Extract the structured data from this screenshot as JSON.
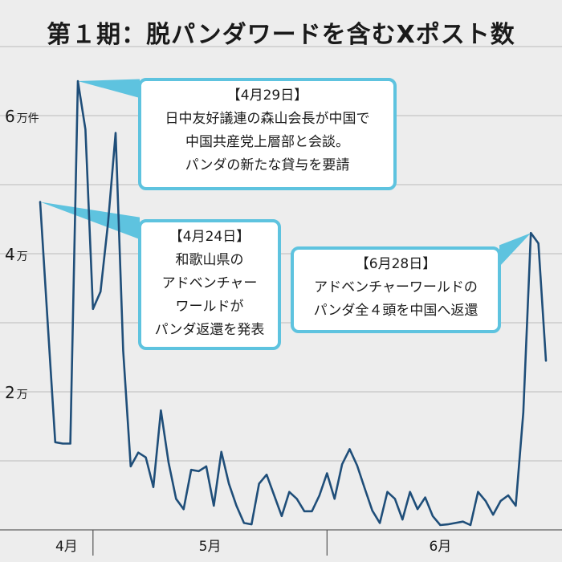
{
  "title": "第１期：脱パンダワードを含むXポスト数",
  "chart_data": {
    "type": "line",
    "title": "第１期：脱パンダワードを含むXポスト数",
    "unit": "万件",
    "y_ticks": [
      {
        "value": 6,
        "label": "6",
        "unit": "万件"
      },
      {
        "value": 4,
        "label": "4",
        "unit": "万"
      },
      {
        "value": 2,
        "label": "2",
        "unit": "万"
      }
    ],
    "ylim": [
      0,
      7
    ],
    "grid": true,
    "x_months": [
      {
        "label": "4月",
        "start_day": 0,
        "end_day": 7
      },
      {
        "label": "5月",
        "start_day": 7,
        "end_day": 38
      },
      {
        "label": "6月",
        "start_day": 38,
        "end_day": 68
      }
    ],
    "series": [
      {
        "color": "#1f4e79",
        "points": [
          {
            "x": "2024-04-24",
            "y": 4.75
          },
          {
            "x": "2024-04-25",
            "y": 3.0
          },
          {
            "x": "2024-04-26",
            "y": 1.27
          },
          {
            "x": "2024-04-27",
            "y": 1.25
          },
          {
            "x": "2024-04-28",
            "y": 1.25
          },
          {
            "x": "2024-04-29",
            "y": 6.5
          },
          {
            "x": "2024-04-30",
            "y": 5.8
          },
          {
            "x": "2024-05-01",
            "y": 3.2
          },
          {
            "x": "2024-05-02",
            "y": 3.45
          },
          {
            "x": "2024-05-03",
            "y": 4.45
          },
          {
            "x": "2024-05-04",
            "y": 5.75
          },
          {
            "x": "2024-05-05",
            "y": 2.6
          },
          {
            "x": "2024-05-06",
            "y": 0.92
          },
          {
            "x": "2024-05-07",
            "y": 1.12
          },
          {
            "x": "2024-05-08",
            "y": 1.05
          },
          {
            "x": "2024-05-09",
            "y": 0.62
          },
          {
            "x": "2024-05-10",
            "y": 1.73
          },
          {
            "x": "2024-05-11",
            "y": 0.98
          },
          {
            "x": "2024-05-12",
            "y": 0.45
          },
          {
            "x": "2024-05-13",
            "y": 0.3
          },
          {
            "x": "2024-05-14",
            "y": 0.87
          },
          {
            "x": "2024-05-15",
            "y": 0.85
          },
          {
            "x": "2024-05-16",
            "y": 0.92
          },
          {
            "x": "2024-05-17",
            "y": 0.35
          },
          {
            "x": "2024-05-18",
            "y": 1.13
          },
          {
            "x": "2024-05-19",
            "y": 0.67
          },
          {
            "x": "2024-05-20",
            "y": 0.35
          },
          {
            "x": "2024-05-21",
            "y": 0.1
          },
          {
            "x": "2024-05-22",
            "y": 0.08
          },
          {
            "x": "2024-05-23",
            "y": 0.67
          },
          {
            "x": "2024-05-24",
            "y": 0.8
          },
          {
            "x": "2024-05-25",
            "y": 0.5
          },
          {
            "x": "2024-05-26",
            "y": 0.2
          },
          {
            "x": "2024-05-27",
            "y": 0.55
          },
          {
            "x": "2024-05-28",
            "y": 0.45
          },
          {
            "x": "2024-05-29",
            "y": 0.27
          },
          {
            "x": "2024-05-30",
            "y": 0.27
          },
          {
            "x": "2024-05-31",
            "y": 0.5
          },
          {
            "x": "2024-06-01",
            "y": 0.82
          },
          {
            "x": "2024-06-02",
            "y": 0.45
          },
          {
            "x": "2024-06-03",
            "y": 0.95
          },
          {
            "x": "2024-06-04",
            "y": 1.17
          },
          {
            "x": "2024-06-05",
            "y": 0.93
          },
          {
            "x": "2024-06-06",
            "y": 0.6
          },
          {
            "x": "2024-06-07",
            "y": 0.28
          },
          {
            "x": "2024-06-08",
            "y": 0.1
          },
          {
            "x": "2024-06-09",
            "y": 0.55
          },
          {
            "x": "2024-06-10",
            "y": 0.45
          },
          {
            "x": "2024-06-11",
            "y": 0.15
          },
          {
            "x": "2024-06-12",
            "y": 0.55
          },
          {
            "x": "2024-06-13",
            "y": 0.3
          },
          {
            "x": "2024-06-14",
            "y": 0.47
          },
          {
            "x": "2024-06-15",
            "y": 0.2
          },
          {
            "x": "2024-06-16",
            "y": 0.07
          },
          {
            "x": "2024-06-17",
            "y": 0.08
          },
          {
            "x": "2024-06-18",
            "y": 0.1
          },
          {
            "x": "2024-06-19",
            "y": 0.12
          },
          {
            "x": "2024-06-20",
            "y": 0.07
          },
          {
            "x": "2024-06-21",
            "y": 0.55
          },
          {
            "x": "2024-06-22",
            "y": 0.42
          },
          {
            "x": "2024-06-23",
            "y": 0.22
          },
          {
            "x": "2024-06-24",
            "y": 0.42
          },
          {
            "x": "2024-06-25",
            "y": 0.5
          },
          {
            "x": "2024-06-26",
            "y": 0.35
          },
          {
            "x": "2024-06-27",
            "y": 1.7
          },
          {
            "x": "2024-06-28",
            "y": 4.3
          },
          {
            "x": "2024-06-29",
            "y": 4.15
          },
          {
            "x": "2024-06-30",
            "y": 2.45
          }
        ]
      }
    ],
    "annotations": [
      {
        "target_date": "2024-04-29",
        "lines": [
          "【4月29日】",
          "日中友好議連の森山会長が中国で",
          "中国共産党上層部と会談。",
          "パンダの新たな貸与を要請"
        ]
      },
      {
        "target_date": "2024-04-24",
        "lines": [
          "【4月24日】",
          "和歌山県の",
          "アドベンチャー",
          "ワールドが",
          "パンダ返還を発表"
        ]
      },
      {
        "target_date": "2024-06-28",
        "lines": [
          "【6月28日】",
          "アドベンチャーワールドの",
          "パンダ全４頭を中国へ返還"
        ]
      }
    ],
    "colors": {
      "line": "#1f4e79",
      "callout_border": "#5ec3df",
      "background": "#ededed",
      "grid": "#bcbcbc"
    }
  }
}
